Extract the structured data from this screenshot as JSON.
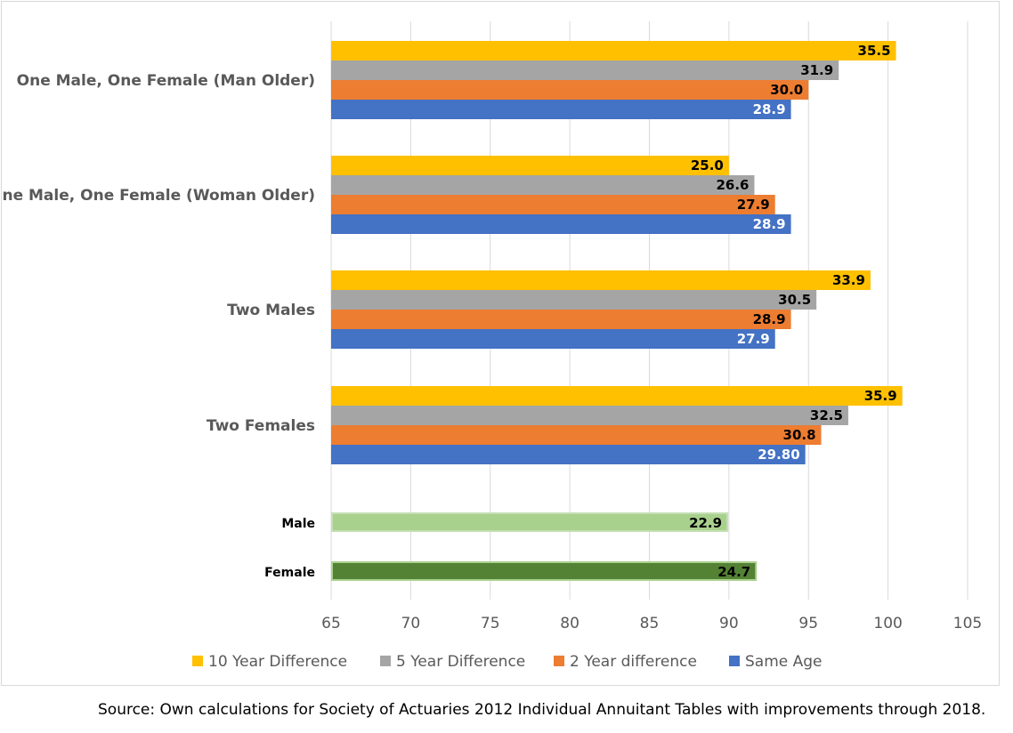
{
  "chart_data": {
    "type": "bar",
    "orientation": "horizontal",
    "xlim": [
      65,
      105
    ],
    "xticks": [
      65,
      70,
      75,
      80,
      85,
      90,
      95,
      100,
      105
    ],
    "grid": true,
    "legend_position": "bottom",
    "series": [
      {
        "name": "10 Year Difference",
        "color": "#ffc000",
        "label_color": "#000000"
      },
      {
        "name": "5 Year Difference",
        "color": "#a5a5a5",
        "label_color": "#000000"
      },
      {
        "name": "2 Year difference",
        "color": "#ed7d31",
        "label_color": "#000000"
      },
      {
        "name": "Same Age",
        "color": "#4472c4",
        "label_color": "#ffffff"
      }
    ],
    "groups": [
      {
        "category": "One Male, One Female (Man Older)",
        "ends": [
          100.5,
          96.9,
          95.0,
          93.9
        ],
        "labels": [
          "35.5",
          "31.9",
          "30.0",
          "28.9"
        ]
      },
      {
        "category": "One Male, One Female (Woman Older)",
        "ends": [
          90.0,
          91.6,
          92.9,
          93.9
        ],
        "labels": [
          "25.0",
          "26.6",
          "27.9",
          "28.9"
        ]
      },
      {
        "category": "Two Males",
        "ends": [
          98.9,
          95.5,
          93.9,
          92.9
        ],
        "labels": [
          "33.9",
          "30.5",
          "28.9",
          "27.9"
        ]
      },
      {
        "category": "Two Females",
        "ends": [
          100.9,
          97.5,
          95.8,
          94.8
        ],
        "labels": [
          "35.9",
          "32.5",
          "30.8",
          "29.80"
        ]
      }
    ],
    "singles": [
      {
        "category": "Male",
        "end": 89.9,
        "label": "22.9",
        "color": "#a9d18e",
        "border": "#c5e0b4"
      },
      {
        "category": "Female",
        "end": 91.7,
        "label": "24.7",
        "color": "#548235",
        "border": "#a9d18e"
      }
    ]
  },
  "source": "Source: Own calculations for Society of Actuaries 2012 Individual Annuitant Tables with improvements through 2018."
}
